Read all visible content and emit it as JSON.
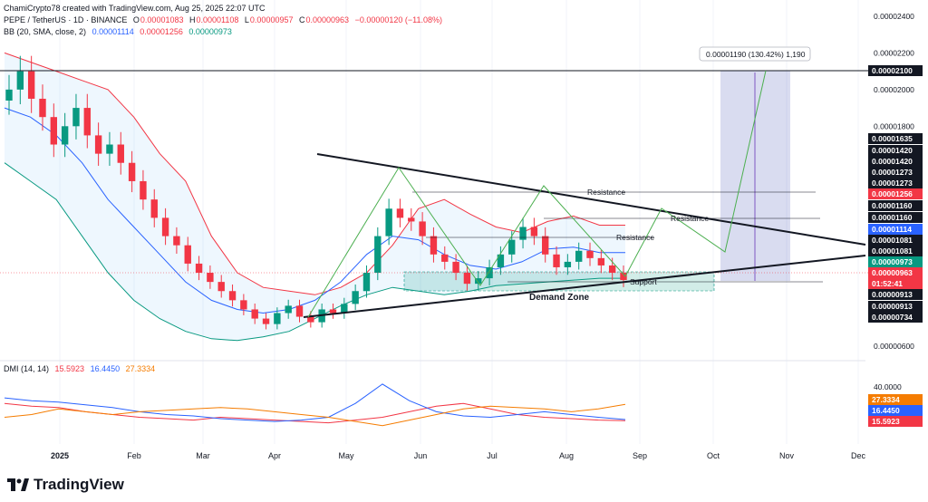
{
  "header": {
    "author_line": "ChamiCrypto78 created with TradingView.com, Aug 25, 2025 22:07 UTC",
    "symbol": "PEPE / TetherUS · 1D · BINANCE",
    "ohlc": {
      "o_label": "O",
      "o": "0.00001083",
      "h_label": "H",
      "h": "0.00001108",
      "l_label": "L",
      "l": "0.00000957",
      "c_label": "C",
      "c": "0.00000963",
      "chg": "−0.00000120 (−11.08%)"
    },
    "bb_label": "BB (20, SMA, close, 2)",
    "bb_values": [
      "0.00001114",
      "0.00001256",
      "0.00000973"
    ]
  },
  "dmi": {
    "label": "DMI (14, 14)",
    "values": [
      "15.5923",
      "16.4450",
      "27.3334"
    ]
  },
  "brand": "TradingView",
  "chart_data": {
    "type": "candlestick",
    "title": "PEPE / TetherUS · 1D · BINANCE",
    "x": [
      "2025",
      "Feb",
      "Mar",
      "Apr",
      "May",
      "Jun",
      "Jul",
      "Aug",
      "Sep",
      "Oct",
      "Nov",
      "Dec"
    ],
    "ylim": [
      5.5e-06,
      2.4e-05
    ],
    "price_axis_ticks": [
      "0.00002400",
      "0.00002200",
      "0.00002000",
      "0.00001800",
      "0.00000600"
    ],
    "price_axis_labels": [
      {
        "text": "0.00002100",
        "kind": "line"
      },
      {
        "text": "0.00001635",
        "kind": "level"
      },
      {
        "text": "0.00001420",
        "kind": "level"
      },
      {
        "text": "0.00001420",
        "kind": "level"
      },
      {
        "text": "0.00001273",
        "kind": "level"
      },
      {
        "text": "0.00001273",
        "kind": "level"
      },
      {
        "text": "0.00001256",
        "kind": "bb_upper"
      },
      {
        "text": "0.00001160",
        "kind": "level"
      },
      {
        "text": "0.00001160",
        "kind": "level"
      },
      {
        "text": "0.00001114",
        "kind": "bb_basis"
      },
      {
        "text": "0.00001081",
        "kind": "level"
      },
      {
        "text": "0.00001081",
        "kind": "level"
      },
      {
        "text": "0.00000973",
        "kind": "bb_lower"
      },
      {
        "text": "0.00000963",
        "kind": "last"
      },
      {
        "text": "01:52:41",
        "kind": "countdown"
      },
      {
        "text": "0.00000913",
        "kind": "level"
      },
      {
        "text": "0.00000913",
        "kind": "level"
      },
      {
        "text": "0.00000734",
        "kind": "level"
      }
    ],
    "closes": [
      2e-05,
      2.1e-05,
      1.95e-05,
      1.85e-05,
      1.7e-05,
      1.8e-05,
      1.9e-05,
      1.75e-05,
      1.65e-05,
      1.7e-05,
      1.6e-05,
      1.5e-05,
      1.4e-05,
      1.3e-05,
      1.2e-05,
      1.15e-05,
      1.05e-05,
      1e-05,
      9.5e-06,
      9e-06,
      8.5e-06,
      8e-06,
      7.5e-06,
      7.2e-06,
      7.8e-06,
      8.2e-06,
      7.6e-06,
      7.3e-06,
      8e-06,
      7.8e-06,
      8.3e-06,
      9e-06,
      1e-05,
      1.2e-05,
      1.35e-05,
      1.3e-05,
      1.28e-05,
      1.2e-05,
      1.1e-05,
      1.06e-05,
      1e-05,
      9.4e-06,
      9.7e-06,
      1.03e-05,
      1.1e-05,
      1.18e-05,
      1.25e-05,
      1.2e-05,
      1.1e-05,
      1.03e-05,
      1.06e-05,
      1.12e-05,
      1.08e-05,
      1.04e-05,
      1e-05,
      9.6e-06
    ],
    "bb_upper": [
      2.2e-05,
      2.15e-05,
      2.1e-05,
      2.05e-05,
      2e-05,
      1.85e-05,
      1.65e-05,
      1.5e-05,
      1.2e-05,
      1e-05,
      9.2e-06,
      9e-06,
      8.8e-06,
      9.2e-06,
      1e-05,
      1.15e-05,
      1.35e-05,
      1.4e-05,
      1.32e-05,
      1.25e-05,
      1.22e-05,
      1.28e-05,
      1.31e-05,
      1.26e-05,
      1.26e-05
    ],
    "bb_basis": [
      1.9e-05,
      1.85e-05,
      1.75e-05,
      1.6e-05,
      1.4e-05,
      1.25e-05,
      1.1e-05,
      9.5e-06,
      8.5e-06,
      8e-06,
      7.8e-06,
      8e-06,
      8.5e-06,
      9.5e-06,
      1.1e-05,
      1.2e-05,
      1.18e-05,
      1.1e-05,
      1.04e-05,
      1.02e-05,
      1.06e-05,
      1.13e-05,
      1.14e-05,
      1.11e-05,
      1.11e-05
    ],
    "bb_lower": [
      1.6e-05,
      1.5e-05,
      1.4e-05,
      1.2e-05,
      1e-05,
      8.5e-06,
      7.5e-06,
      6.8e-06,
      6.4e-06,
      6.3e-06,
      6.5e-06,
      6.8e-06,
      7.5e-06,
      8.2e-06,
      8.8e-06,
      9.2e-06,
      9e-06,
      8.8e-06,
      9e-06,
      9.3e-06,
      9.4e-06,
      9.5e-06,
      9.6e-06,
      9.7e-06,
      9.7e-06
    ],
    "annotations": {
      "resistance_labels": [
        "Resistance",
        "Resistance",
        "Resistance"
      ],
      "support_label": "Support",
      "demand_label": "Demand Zone",
      "target_label": "0.00001190 (130.42%) 1,190"
    },
    "dmi": {
      "series": [
        {
          "name": "DMI (14, 14)",
          "color": "#f23645",
          "last": "15.5923",
          "values": [
            28,
            26,
            25,
            22,
            20,
            18,
            17,
            16,
            18,
            17,
            16,
            15,
            14,
            16,
            18,
            22,
            26,
            28,
            24,
            20,
            18,
            17,
            16,
            15.6
          ]
        },
        {
          "name": "DMI (14, 14)",
          "color": "#2962ff",
          "last": "16.4450",
          "values": [
            32,
            30,
            29,
            27,
            25,
            22,
            20,
            19,
            17,
            16,
            15,
            16,
            18,
            28,
            42,
            30,
            22,
            19,
            18,
            20,
            22,
            20,
            18,
            16.4
          ]
        },
        {
          "name": "DMI (14, 14)",
          "color": "#f57c00",
          "last": "27.3334",
          "values": [
            18,
            20,
            24,
            22,
            20,
            22,
            23,
            24,
            25,
            24,
            22,
            20,
            18,
            15,
            12,
            16,
            20,
            24,
            26,
            25,
            24,
            22,
            24,
            27.3
          ]
        }
      ],
      "ticks": [
        "40.0000"
      ]
    }
  }
}
